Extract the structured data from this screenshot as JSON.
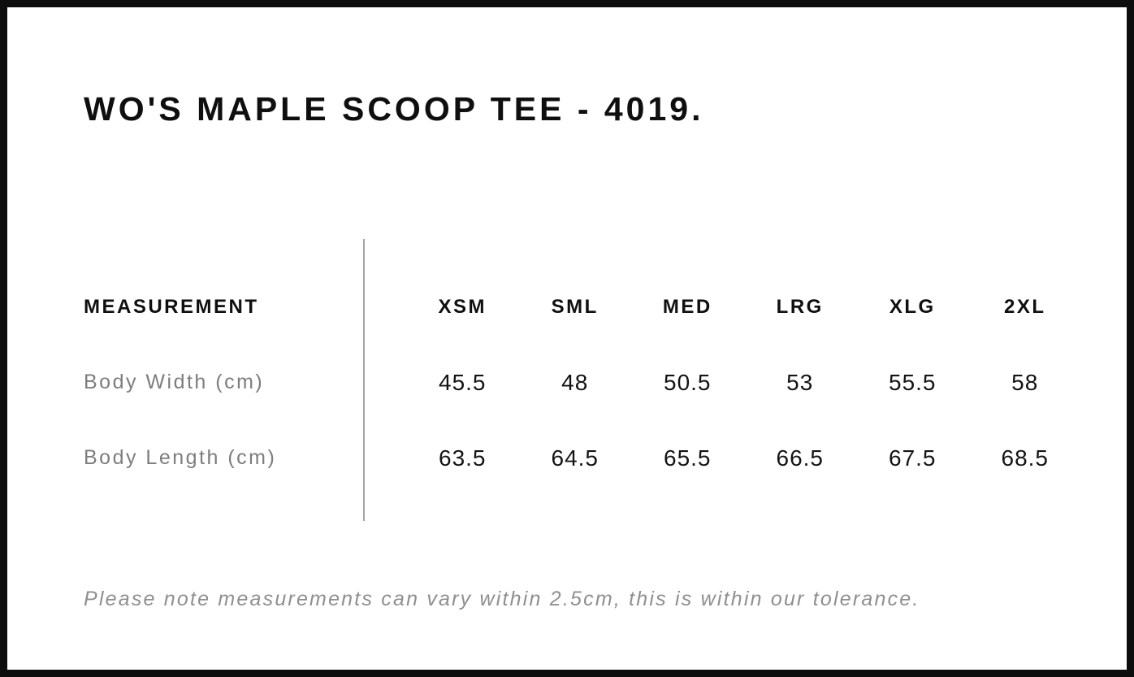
{
  "title": "WO'S MAPLE SCOOP TEE - 4019.",
  "table": {
    "header_label": "MEASUREMENT",
    "sizes": [
      "XSM",
      "SML",
      "MED",
      "LRG",
      "XLG",
      "2XL"
    ],
    "rows": [
      {
        "label": "Body Width (cm)",
        "values": [
          "45.5",
          "48",
          "50.5",
          "53",
          "55.5",
          "58"
        ]
      },
      {
        "label": "Body Length (cm)",
        "values": [
          "63.5",
          "64.5",
          "65.5",
          "66.5",
          "67.5",
          "68.5"
        ]
      }
    ]
  },
  "note": "Please note measurements can vary within 2.5cm, this is within our tolerance.",
  "colors": {
    "border": "#0d0d0d",
    "heading_text": "#0f0f0f",
    "value_text": "#141414",
    "label_text": "#7d7d7d",
    "note_text": "#8f8f8f",
    "divider": "#a3a3a3",
    "background": "#ffffff"
  },
  "chart_data": {
    "type": "table",
    "title": "WO'S MAPLE SCOOP TEE - 4019.",
    "categories": [
      "XSM",
      "SML",
      "MED",
      "LRG",
      "XLG",
      "2XL"
    ],
    "series": [
      {
        "name": "Body Width (cm)",
        "values": [
          45.5,
          48,
          50.5,
          53,
          55.5,
          58
        ]
      },
      {
        "name": "Body Length (cm)",
        "values": [
          63.5,
          64.5,
          65.5,
          66.5,
          67.5,
          68.5
        ]
      }
    ],
    "note": "Please note measurements can vary within 2.5cm, this is within our tolerance."
  }
}
